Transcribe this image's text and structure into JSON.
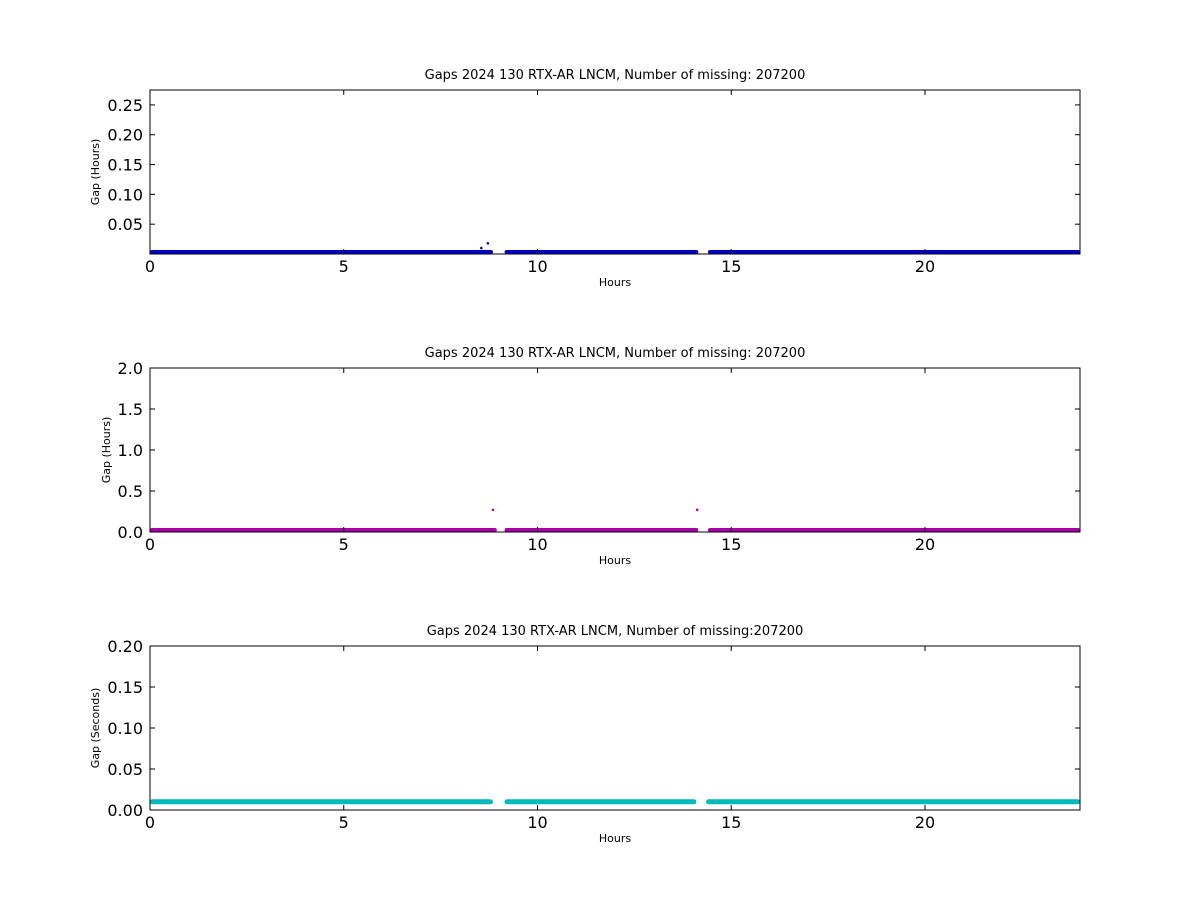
{
  "chart_data": [
    {
      "type": "scatter",
      "title": "Gaps 2024 130 RTX-AR  LNCM, Number of missing: 207200",
      "xlabel": "Hours",
      "ylabel": "Gap (Hours)",
      "xlim": [
        0,
        24
      ],
      "ylim": [
        0,
        0.275
      ],
      "xticks": [
        "0",
        "5",
        "10",
        "15",
        "20"
      ],
      "yticks": [
        "0.05",
        "0.10",
        "0.15",
        "0.20",
        "0.25"
      ],
      "color": "#0000cc",
      "baseline": 0.0003,
      "segments": [
        [
          0,
          8.85
        ],
        [
          9.15,
          14.15
        ],
        [
          14.4,
          24
        ]
      ],
      "points": [
        [
          8.55,
          0.01
        ],
        [
          8.72,
          0.018
        ]
      ],
      "grid": false
    },
    {
      "type": "scatter",
      "title": "Gaps 2024 130 RTX-AR  LNCM, Number of missing: 207200",
      "xlabel": "Hours",
      "ylabel": "Gap (Hours)",
      "xlim": [
        0,
        24
      ],
      "ylim": [
        0,
        2.0
      ],
      "xticks": [
        "0",
        "5",
        "10",
        "15",
        "20"
      ],
      "yticks": [
        "0.0",
        "0.5",
        "1.0",
        "1.5",
        "2.0"
      ],
      "color": "#aa00aa",
      "baseline": 0.003,
      "segments": [
        [
          0,
          8.95
        ],
        [
          9.15,
          14.15
        ],
        [
          14.4,
          24
        ]
      ],
      "points": [
        [
          8.85,
          0.27
        ],
        [
          14.12,
          0.27
        ]
      ],
      "grid": false
    },
    {
      "type": "scatter",
      "title": "Gaps 2024 130 RTX-AR  LNCM, Number of missing:207200",
      "xlabel": "Hours",
      "ylabel": "Gap (Seconds)",
      "xlim": [
        0,
        24
      ],
      "ylim": [
        0,
        0.2
      ],
      "xticks": [
        "0",
        "5",
        "10",
        "15",
        "20"
      ],
      "yticks": [
        "0.00",
        "0.05",
        "0.10",
        "0.15",
        "0.20"
      ],
      "color": "#00bbbb",
      "baseline": 0.01,
      "segments": [
        [
          0,
          8.85
        ],
        [
          9.15,
          14.1
        ],
        [
          14.35,
          24
        ]
      ],
      "points": [],
      "grid": false
    }
  ]
}
